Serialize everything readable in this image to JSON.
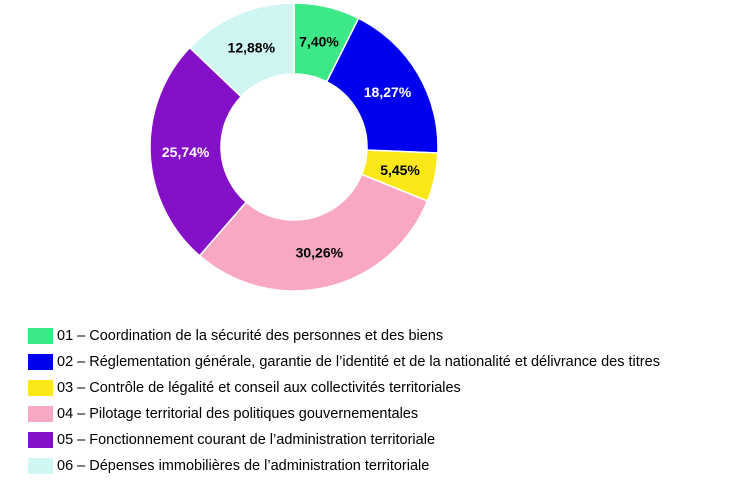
{
  "chart_data": {
    "type": "pie",
    "donut": true,
    "start": "12 o'clock, clockwise",
    "slices": [
      {
        "label": "01 – Coordination de la sécurité des personnes et des biens",
        "value": 7.4,
        "value_label": "7,40%",
        "color": "#3de888",
        "label_color": "#000000"
      },
      {
        "label": "02 – Réglementation générale, garantie de l’identité et de la nationalité et délivrance des titres",
        "value": 18.27,
        "value_label": "18,27%",
        "color": "#0000ee",
        "label_color": "#ffffff"
      },
      {
        "label": "03 – Contrôle de légalité et conseil aux collectivités territoriales",
        "value": 5.45,
        "value_label": "5,45%",
        "color": "#fae818",
        "label_color": "#000000"
      },
      {
        "label": "04 – Pilotage territorial des politiques gouvernementales",
        "value": 30.26,
        "value_label": "30,26%",
        "color": "#f8a8c4",
        "label_color": "#000000"
      },
      {
        "label": "05 – Fonctionnement courant de l’administration territoriale",
        "value": 25.74,
        "value_label": "25,74%",
        "color": "#8410c8",
        "label_color": "#ffffff"
      },
      {
        "label": "06 – Dépenses immobilières de l’administration territoriale",
        "value": 12.88,
        "value_label": "12,88%",
        "color": "#d0f6f4",
        "label_color": "#000000"
      }
    ],
    "legend": "bottom"
  }
}
